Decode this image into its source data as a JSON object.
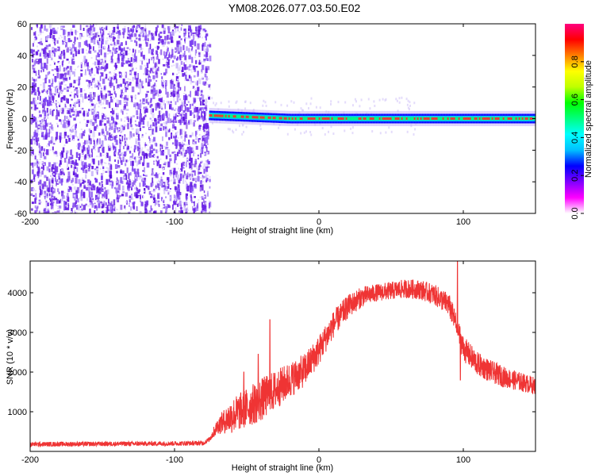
{
  "page": {
    "title": "YM08.2026.077.03.50.E02"
  },
  "chart_data": [
    {
      "type": "heatmap",
      "name": "spectrogram",
      "xlabel": "Height of straight line (km)",
      "ylabel": "Frequency (Hz)",
      "xlim": [
        -200,
        150
      ],
      "ylim": [
        -60,
        60
      ],
      "xticks": [
        -200,
        -100,
        0,
        100
      ],
      "xtick_labels": [
        "-200",
        "-100",
        "0",
        "100"
      ],
      "yticks": [
        -60,
        -40,
        -20,
        0,
        20,
        40,
        60
      ],
      "ytick_labels": [
        "-60",
        "-40",
        "-20",
        "0",
        "20",
        "40",
        "60"
      ],
      "noise_region_x": [
        -200,
        -76
      ],
      "band_start_x": -76,
      "band_center_hz": 0,
      "band_center_hz_start": 2,
      "band_halfwidth_hz": 3,
      "colorbar": {
        "label": "Normalized spectral amplitude",
        "range": [
          0,
          1
        ],
        "ticks": [
          0.0,
          0.2,
          0.4,
          0.6,
          0.8
        ],
        "tick_labels": [
          "0.0",
          "0.2",
          "0.4",
          "0.6",
          "0.8"
        ],
        "colors": [
          "#ffffff",
          "#ff00ff",
          "#7f00ff",
          "#0000ff",
          "#00bfff",
          "#00ffff",
          "#00ff7f",
          "#00ff00",
          "#bfff00",
          "#ffff00",
          "#ff7f00",
          "#ff0000",
          "#ff007f"
        ]
      },
      "noise_color": "#7b3ff2",
      "band_colors": [
        "#0000ff",
        "#00c8ff",
        "#00ff7f",
        "#ff3030"
      ]
    },
    {
      "type": "line",
      "name": "snr",
      "xlabel": "Height of straight line (km)",
      "ylabel": "SNR (10 * v/v)",
      "xlim": [
        -200,
        150
      ],
      "ylim": [
        0,
        4800
      ],
      "xticks": [
        -200,
        -100,
        0,
        100
      ],
      "xtick_labels": [
        "-200",
        "-100",
        "0",
        "100"
      ],
      "yticks": [
        1000,
        2000,
        3000,
        4000
      ],
      "ytick_labels": [
        "1000",
        "2000",
        "3000",
        "4000"
      ],
      "line_color": "#ef3434",
      "envelope": {
        "x": [
          -200,
          -150,
          -100,
          -80,
          -76,
          -70,
          -60,
          -50,
          -40,
          -30,
          -20,
          -10,
          0,
          10,
          20,
          30,
          40,
          50,
          60,
          70,
          80,
          90,
          95,
          100,
          110,
          120,
          130,
          140,
          150
        ],
        "y": [
          180,
          190,
          200,
          210,
          300,
          650,
          900,
          1100,
          1300,
          1550,
          1800,
          2050,
          2550,
          3200,
          3650,
          3900,
          4000,
          4050,
          4100,
          4080,
          3950,
          3700,
          3200,
          2600,
          2200,
          2000,
          1850,
          1750,
          1650
        ]
      },
      "noise_amplitude": {
        "x": [
          -200,
          -76,
          -60,
          -40,
          -20,
          0,
          40,
          80,
          100,
          150
        ],
        "y": [
          60,
          60,
          450,
          550,
          450,
          380,
          220,
          260,
          320,
          220
        ]
      },
      "spikes": [
        {
          "x": -52,
          "y": 2000
        },
        {
          "x": -42,
          "y": 2450
        },
        {
          "x": -34,
          "y": 3320
        },
        {
          "x": -12,
          "y": 2100
        },
        {
          "x": 96,
          "y": 4800
        },
        {
          "x": 98,
          "y": 1800
        }
      ]
    }
  ]
}
